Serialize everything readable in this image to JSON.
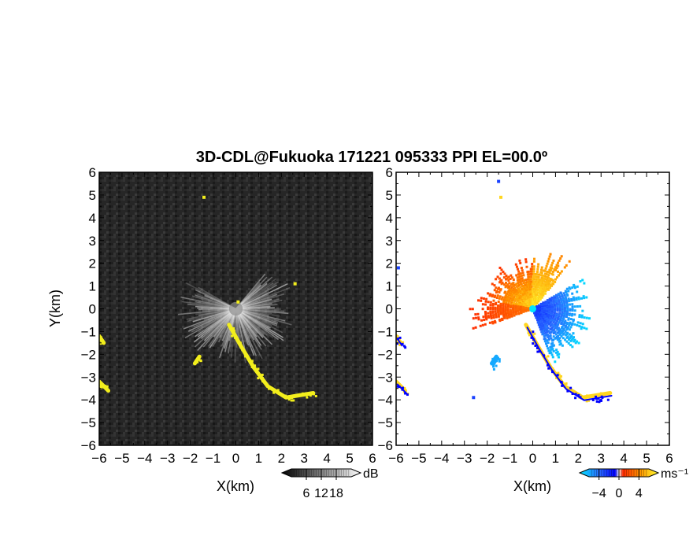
{
  "chart_data": {
    "type": "heatmap",
    "title": "3D-CDL@Fukuoka 171221 095333 PPI EL=00.0º",
    "panels": [
      {
        "name": "intensity",
        "xlabel": "X(km)",
        "ylabel": "Y(km)",
        "xlim": [
          -6,
          6
        ],
        "ylim": [
          -6,
          6
        ],
        "xticks": [
          "−6",
          "−5",
          "−4",
          "−3",
          "−2",
          "−1",
          "0",
          "1",
          "2",
          "3",
          "4",
          "5",
          "6"
        ],
        "yticks": [
          "−6",
          "−5",
          "−4",
          "−3",
          "−2",
          "−1",
          "0",
          "1",
          "2",
          "3",
          "4",
          "5",
          "6"
        ],
        "colorbar": {
          "unit": "dB",
          "ticks": [
            "6",
            "12",
            "18"
          ],
          "values": [
            6,
            12,
            18
          ],
          "range": [
            0,
            24
          ]
        },
        "highlight_color": "#f2ee1c",
        "features": [
          {
            "type": "ray_fan",
            "center": [
              0,
              0
            ],
            "radius_km": 2.6,
            "az_from": 40,
            "az_to": 300
          },
          {
            "type": "echo_band",
            "points": [
              [
                -0.3,
                -0.7
              ],
              [
                0.2,
                -1.6
              ],
              [
                0.8,
                -2.6
              ],
              [
                1.4,
                -3.4
              ],
              [
                2.2,
                -3.9
              ],
              [
                2.8,
                -3.8
              ],
              [
                3.4,
                -3.7
              ]
            ]
          },
          {
            "type": "echo_band",
            "points": [
              [
                -6,
                -1.2
              ],
              [
                -5.8,
                -1.5
              ]
            ]
          },
          {
            "type": "echo_band",
            "points": [
              [
                -6,
                -3.2
              ],
              [
                -5.6,
                -3.6
              ]
            ]
          },
          {
            "type": "echo_band",
            "points": [
              [
                -1.6,
                -2.1
              ],
              [
                -1.8,
                -2.4
              ]
            ]
          },
          {
            "type": "echo_spot",
            "points": [
              [
                -1.4,
                4.9
              ],
              [
                2.6,
                1.1
              ],
              [
                0.1,
                0.3
              ]
            ]
          }
        ]
      },
      {
        "name": "velocity",
        "xlabel": "X(km)",
        "xlim": [
          -6,
          6
        ],
        "ylim": [
          -6,
          6
        ],
        "xticks": [
          "−6",
          "−5",
          "−4",
          "−3",
          "−2",
          "−1",
          "0",
          "1",
          "2",
          "3",
          "4",
          "5",
          "6"
        ],
        "yticks": [
          "−6",
          "−5",
          "−4",
          "−3",
          "−2",
          "−1",
          "0",
          "1",
          "2",
          "3",
          "4",
          "5",
          "6"
        ],
        "colorbar": {
          "unit": "ms⁻¹",
          "ticks": [
            "−4",
            "0",
            "4"
          ],
          "values": [
            -4,
            0,
            4
          ],
          "range": [
            -6,
            6
          ]
        },
        "features": [
          {
            "type": "velocity_fan",
            "center": [
              0,
              0
            ],
            "sector": "north-west",
            "az_from": 280,
            "az_to": 360,
            "radius_km": 2.4,
            "velocity_range": [
              1,
              6
            ]
          },
          {
            "type": "velocity_fan",
            "center": [
              0,
              0
            ],
            "sector": "north-east",
            "az_from": 0,
            "az_to": 40,
            "radius_km": 2.7,
            "velocity_range": [
              3,
              6
            ]
          },
          {
            "type": "velocity_fan",
            "center": [
              0,
              0
            ],
            "sector": "south-east",
            "az_from": 60,
            "az_to": 160,
            "radius_km": 2.7,
            "velocity_range": [
              -6,
              -2
            ]
          },
          {
            "type": "velocity_fan",
            "center": [
              0,
              0
            ],
            "sector": "west",
            "az_from": 250,
            "az_to": 280,
            "radius_km": 2.9,
            "velocity_range": [
              1,
              3
            ]
          },
          {
            "type": "echo_band",
            "points": [
              [
                -0.3,
                -0.7
              ],
              [
                0.2,
                -1.6
              ],
              [
                0.8,
                -2.6
              ],
              [
                1.4,
                -3.4
              ],
              [
                2.2,
                -3.9
              ],
              [
                2.8,
                -3.8
              ],
              [
                3.4,
                -3.7
              ]
            ],
            "velocity": 5
          },
          {
            "type": "echo_band",
            "points": [
              [
                -6,
                -1.2
              ],
              [
                -5.8,
                -1.5
              ]
            ],
            "velocity": 5
          },
          {
            "type": "echo_band",
            "points": [
              [
                -6,
                -3.2
              ],
              [
                -5.6,
                -3.6
              ]
            ],
            "velocity": 5
          },
          {
            "type": "echo_band",
            "points": [
              [
                -1.6,
                -2.1
              ],
              [
                -1.8,
                -2.4
              ]
            ],
            "velocity": -5
          },
          {
            "type": "echo_spot",
            "points": [
              [
                -1.4,
                4.9
              ]
            ],
            "velocity": 5
          },
          {
            "type": "echo_spot",
            "points": [
              [
                -1.5,
                5.6
              ],
              [
                -5.9,
                1.8
              ],
              [
                -2.6,
                -3.9
              ]
            ],
            "velocity": -3
          }
        ]
      }
    ]
  }
}
